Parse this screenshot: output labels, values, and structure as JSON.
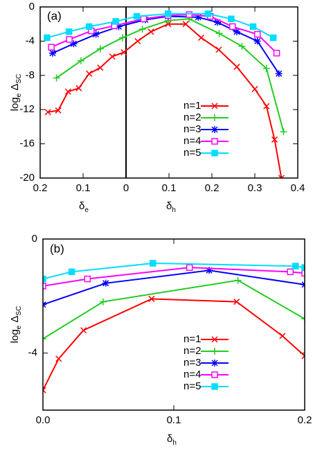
{
  "chart_data": [
    {
      "type": "line",
      "panel_label": "(a)",
      "ylabel": [
        "log",
        "e",
        " Δ",
        "SC"
      ],
      "xlabel": [
        [
          "δ",
          "e"
        ],
        [
          "δ",
          "h"
        ]
      ],
      "xlim": [
        -0.2,
        0.4
      ],
      "xticks": [
        {
          "value": -0.2,
          "label": "0.2"
        },
        {
          "value": -0.1,
          "label": "0.1"
        },
        0,
        0.1,
        0.2,
        0.3,
        0.4
      ],
      "ylim": [
        -20,
        0
      ],
      "yticks": [
        0,
        -4,
        -8,
        -12,
        -16,
        -20
      ],
      "zero_axis": true,
      "series": [
        {
          "name": "n=1",
          "color": "#ff0000",
          "marker": "x",
          "x": [
            -0.182,
            -0.158,
            -0.135,
            -0.11,
            -0.086,
            -0.06,
            -0.032,
            -0.005,
            0.027,
            0.058,
            0.098,
            0.139,
            0.175,
            0.216,
            0.258,
            0.3,
            0.327,
            0.346,
            0.362
          ],
          "values": [
            -12.3,
            -12.1,
            -9.9,
            -9.5,
            -7.8,
            -7.1,
            -5.8,
            -5.3,
            -4.0,
            -2.9,
            -2.0,
            -2.0,
            -3.6,
            -5.0,
            -7.0,
            -9.6,
            -11.6,
            -15.5,
            -20
          ]
        },
        {
          "name": "n=2",
          "color": "#22cc22",
          "marker": "plus",
          "x": [
            -0.162,
            -0.105,
            -0.06,
            -0.008,
            0.038,
            0.098,
            0.147,
            0.217,
            0.27,
            0.327,
            0.367
          ],
          "values": [
            -8.3,
            -6.3,
            -4.9,
            -3.6,
            -2.6,
            -1.6,
            -1.4,
            -3.1,
            -4.6,
            -7.2,
            -14.6
          ]
        },
        {
          "name": "n=3",
          "color": "#0000ff",
          "marker": "star",
          "x": [
            -0.171,
            -0.122,
            -0.07,
            -0.017,
            0.045,
            0.098,
            0.168,
            0.213,
            0.258,
            0.306,
            0.356
          ],
          "values": [
            -5.4,
            -4.3,
            -3.2,
            -2.3,
            -1.5,
            -1.1,
            -1.2,
            -1.8,
            -2.9,
            -4.0,
            -7.8
          ]
        },
        {
          "name": "n=4",
          "color": "#ff00ff",
          "marker": "open-square",
          "x": [
            -0.174,
            -0.132,
            -0.081,
            -0.027,
            0.041,
            0.098,
            0.147,
            0.196,
            0.248,
            0.306,
            0.351
          ],
          "values": [
            -4.7,
            -3.8,
            -2.8,
            -2.2,
            -1.4,
            -1.0,
            -0.9,
            -1.1,
            -2.3,
            -3.2,
            -5.4
          ]
        },
        {
          "name": "n=5",
          "color": "#00ddff",
          "marker": "square",
          "x": [
            -0.184,
            -0.133,
            -0.086,
            -0.024,
            0.025,
            0.098,
            0.191,
            0.245,
            0.296,
            0.343
          ],
          "values": [
            -3.6,
            -2.9,
            -2.3,
            -1.7,
            -1.1,
            -0.8,
            -0.8,
            -1.4,
            -2.3,
            -3.6
          ]
        }
      ]
    },
    {
      "type": "line",
      "panel_label": "(b)",
      "ylabel": [
        "log",
        "e",
        " Δ",
        "SC"
      ],
      "xlabel": [
        [
          "δ",
          "h"
        ]
      ],
      "xlim": [
        0,
        0.2
      ],
      "xticks": [
        {
          "value": 0,
          "label": "0.0"
        },
        0.1,
        0.2
      ],
      "ylim": [
        -6,
        0
      ],
      "yticks": [
        0,
        -4
      ],
      "zero_axis": false,
      "series": [
        {
          "name": "n=1",
          "color": "#ff0000",
          "marker": "x",
          "x": [
            0,
            0.012,
            0.031,
            0.083,
            0.148,
            0.183,
            0.2
          ],
          "values": [
            -5.3,
            -4.2,
            -3.2,
            -2.1,
            -2.2,
            -3.4,
            -4.1
          ]
        },
        {
          "name": "n=2",
          "color": "#22cc22",
          "marker": "plus",
          "x": [
            0,
            0.046,
            0.149,
            0.2
          ],
          "values": [
            -3.5,
            -2.2,
            -1.45,
            -2.8
          ]
        },
        {
          "name": "n=3",
          "color": "#0000ff",
          "marker": "star",
          "x": [
            0,
            0.048,
            0.127,
            0.2
          ],
          "values": [
            -2.3,
            -1.55,
            -1.1,
            -1.6
          ]
        },
        {
          "name": "n=4",
          "color": "#ff00ff",
          "marker": "open-square",
          "x": [
            0,
            0.034,
            0.112,
            0.189,
            0.2
          ],
          "values": [
            -1.65,
            -1.4,
            -1.0,
            -1.15,
            -1.2
          ]
        },
        {
          "name": "n=5",
          "color": "#00ddff",
          "marker": "square",
          "x": [
            0,
            0.022,
            0.084,
            0.193,
            0.2
          ],
          "values": [
            -1.4,
            -1.15,
            -0.85,
            -0.95,
            -1.0
          ]
        }
      ]
    }
  ]
}
